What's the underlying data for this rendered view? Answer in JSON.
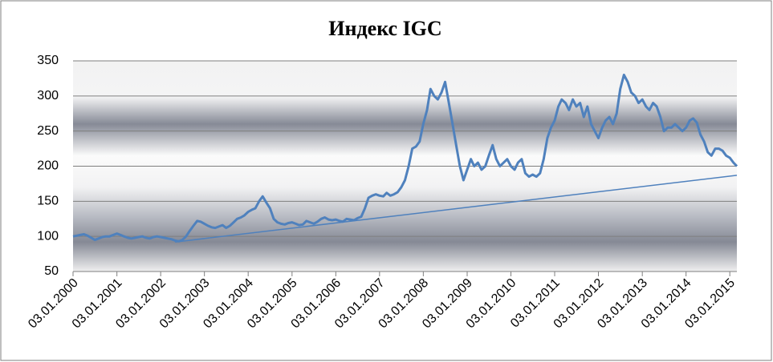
{
  "chart_data": {
    "type": "line",
    "title": "Индекс IGC",
    "x": [
      "03.01.2000",
      "03.02.2000",
      "03.03.2000",
      "03.04.2000",
      "03.05.2000",
      "03.06.2000",
      "03.07.2000",
      "03.08.2000",
      "03.09.2000",
      "03.10.2000",
      "03.11.2000",
      "03.12.2000",
      "03.01.2001",
      "03.02.2001",
      "03.03.2001",
      "03.04.2001",
      "03.05.2001",
      "03.06.2001",
      "03.07.2001",
      "03.08.2001",
      "03.09.2001",
      "03.10.2001",
      "03.11.2001",
      "03.12.2001",
      "03.01.2002",
      "03.02.2002",
      "03.03.2002",
      "03.04.2002",
      "03.05.2002",
      "03.06.2002",
      "03.07.2002",
      "03.08.2002",
      "03.09.2002",
      "03.10.2002",
      "03.11.2002",
      "03.12.2002",
      "03.01.2003",
      "03.02.2003",
      "03.03.2003",
      "03.04.2003",
      "03.05.2003",
      "03.06.2003",
      "03.07.2003",
      "03.08.2003",
      "03.09.2003",
      "03.10.2003",
      "03.11.2003",
      "03.12.2003",
      "03.01.2004",
      "03.02.2004",
      "03.03.2004",
      "03.04.2004",
      "03.05.2004",
      "03.06.2004",
      "03.07.2004",
      "03.08.2004",
      "03.09.2004",
      "03.10.2004",
      "03.11.2004",
      "03.12.2004",
      "03.01.2005",
      "03.02.2005",
      "03.03.2005",
      "03.04.2005",
      "03.05.2005",
      "03.06.2005",
      "03.07.2005",
      "03.08.2005",
      "03.09.2005",
      "03.10.2005",
      "03.11.2005",
      "03.12.2005",
      "03.01.2006",
      "03.02.2006",
      "03.03.2006",
      "03.04.2006",
      "03.05.2006",
      "03.06.2006",
      "03.07.2006",
      "03.08.2006",
      "03.09.2006",
      "03.10.2006",
      "03.11.2006",
      "03.12.2006",
      "03.01.2007",
      "03.02.2007",
      "03.03.2007",
      "03.04.2007",
      "03.05.2007",
      "03.06.2007",
      "03.07.2007",
      "03.08.2007",
      "03.09.2007",
      "03.10.2007",
      "03.11.2007",
      "03.12.2007",
      "03.01.2008",
      "03.02.2008",
      "03.03.2008",
      "03.04.2008",
      "03.05.2008",
      "03.06.2008",
      "03.07.2008",
      "03.08.2008",
      "03.09.2008",
      "03.10.2008",
      "03.11.2008",
      "03.12.2008",
      "03.01.2009",
      "03.02.2009",
      "03.03.2009",
      "03.04.2009",
      "03.05.2009",
      "03.06.2009",
      "03.07.2009",
      "03.08.2009",
      "03.09.2009",
      "03.10.2009",
      "03.11.2009",
      "03.12.2009",
      "03.01.2010",
      "03.02.2010",
      "03.03.2010",
      "03.04.2010",
      "03.05.2010",
      "03.06.2010",
      "03.07.2010",
      "03.08.2010",
      "03.09.2010",
      "03.10.2010",
      "03.11.2010",
      "03.12.2010",
      "03.01.2011",
      "03.02.2011",
      "03.03.2011",
      "03.04.2011",
      "03.05.2011",
      "03.06.2011",
      "03.07.2011",
      "03.08.2011",
      "03.09.2011",
      "03.10.2011",
      "03.11.2011",
      "03.12.2011",
      "03.01.2012",
      "03.02.2012",
      "03.03.2012",
      "03.04.2012",
      "03.05.2012",
      "03.06.2012",
      "03.07.2012",
      "03.08.2012",
      "03.09.2012",
      "03.10.2012",
      "03.11.2012",
      "03.12.2012",
      "03.01.2013",
      "03.02.2013",
      "03.03.2013",
      "03.04.2013",
      "03.05.2013",
      "03.06.2013",
      "03.07.2013",
      "03.08.2013",
      "03.09.2013",
      "03.10.2013",
      "03.11.2013",
      "03.12.2013",
      "03.01.2014",
      "03.02.2014",
      "03.03.2014",
      "03.04.2014",
      "03.05.2014",
      "03.06.2014",
      "03.07.2014",
      "03.08.2014",
      "03.09.2014",
      "03.10.2014",
      "03.11.2014",
      "03.12.2014",
      "03.01.2015",
      "03.02.2015",
      "03.03.2015"
    ],
    "series": [
      {
        "color": "#4f81bd",
        "values": [
          100,
          101,
          102,
          103,
          101,
          98,
          95,
          97,
          99,
          100,
          100,
          102,
          104,
          102,
          100,
          98,
          97,
          98,
          99,
          100,
          98,
          97,
          99,
          100,
          99,
          98,
          97,
          96,
          94,
          93,
          95,
          100,
          108,
          115,
          122,
          121,
          118,
          115,
          113,
          112,
          114,
          116,
          112,
          115,
          120,
          125,
          127,
          130,
          135,
          138,
          140,
          150,
          157,
          148,
          140,
          125,
          120,
          118,
          117,
          119,
          120,
          118,
          116,
          117,
          122,
          120,
          118,
          121,
          125,
          127,
          124,
          123,
          124,
          122,
          121,
          125,
          124,
          123,
          126,
          128,
          140,
          155,
          158,
          160,
          158,
          157,
          162,
          158,
          160,
          163,
          170,
          180,
          200,
          225,
          228,
          235,
          260,
          280,
          310,
          300,
          295,
          305,
          320,
          290,
          260,
          230,
          200,
          180,
          195,
          210,
          200,
          205,
          195,
          200,
          215,
          230,
          210,
          200,
          205,
          210,
          200,
          195,
          205,
          210,
          190,
          185,
          188,
          185,
          190,
          210,
          240,
          255,
          265,
          285,
          295,
          290,
          280,
          295,
          285,
          290,
          270,
          285,
          260,
          250,
          240,
          255,
          265,
          270,
          260,
          275,
          310,
          330,
          320,
          305,
          300,
          290,
          295,
          285,
          280,
          290,
          285,
          270,
          250,
          255,
          255,
          260,
          255,
          250,
          255,
          265,
          268,
          262,
          245,
          235,
          220,
          215,
          225,
          225,
          222,
          215,
          212,
          205,
          200
        ]
      }
    ],
    "trendline": {
      "color": "#4f81bd",
      "x": [
        "03.05.2002",
        "03.03.2015"
      ],
      "values": [
        92,
        187
      ]
    },
    "xlim": [
      "03.01.2000",
      "03.03.2015"
    ],
    "xticks": [
      "03.01.2000",
      "03.01.2001",
      "03.01.2002",
      "03.01.2003",
      "03.01.2004",
      "03.01.2005",
      "03.01.2006",
      "03.01.2007",
      "03.01.2008",
      "03.01.2009",
      "03.01.2010",
      "03.01.2011",
      "03.01.2012",
      "03.01.2013",
      "03.01.2014",
      "03.01.2015"
    ],
    "ylim": [
      50,
      350
    ],
    "yticks": [
      50,
      100,
      150,
      200,
      250,
      300,
      350
    ],
    "grid": true
  }
}
